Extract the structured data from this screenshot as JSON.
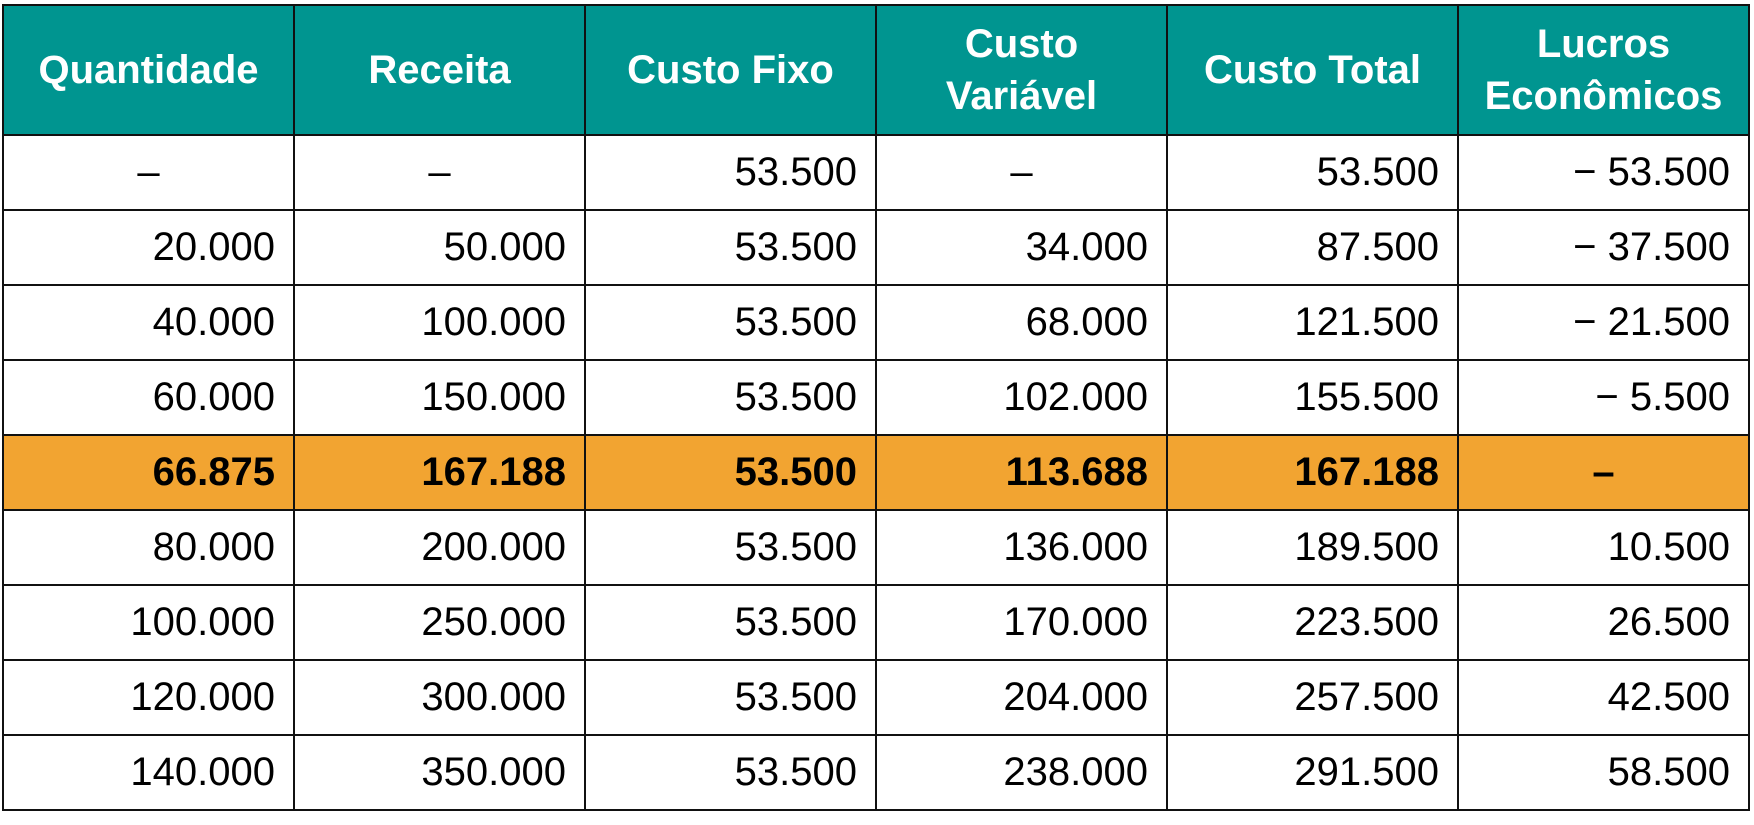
{
  "table": {
    "headers": [
      "Quantidade",
      "Receita",
      "Custo Fixo",
      "Custo\nVariável",
      "Custo Total",
      "Lucros\nEconômicos"
    ],
    "rows": [
      [
        "–",
        "–",
        "53.500",
        "–",
        "53.500",
        "− 53.500"
      ],
      [
        "20.000",
        "50.000",
        "53.500",
        "34.000",
        "87.500",
        "− 37.500"
      ],
      [
        "40.000",
        "100.000",
        "53.500",
        "68.000",
        "121.500",
        "− 21.500"
      ],
      [
        "60.000",
        "150.000",
        "53.500",
        "102.000",
        "155.500",
        "− 5.500"
      ],
      [
        "66.875",
        "167.188",
        "53.500",
        "113.688",
        "167.188",
        "–"
      ],
      [
        "80.000",
        "200.000",
        "53.500",
        "136.000",
        "189.500",
        "10.500"
      ],
      [
        "100.000",
        "250.000",
        "53.500",
        "170.000",
        "223.500",
        "26.500"
      ],
      [
        "120.000",
        "300.000",
        "53.500",
        "204.000",
        "257.500",
        "42.500"
      ],
      [
        "140.000",
        "350.000",
        "53.500",
        "238.000",
        "291.500",
        "58.500"
      ]
    ],
    "highlight_row_index": 4
  },
  "colors": {
    "header_background": "#009590",
    "header_text": "#FFFFFF",
    "highlight_background": "#F2A431",
    "border": "#111111"
  }
}
